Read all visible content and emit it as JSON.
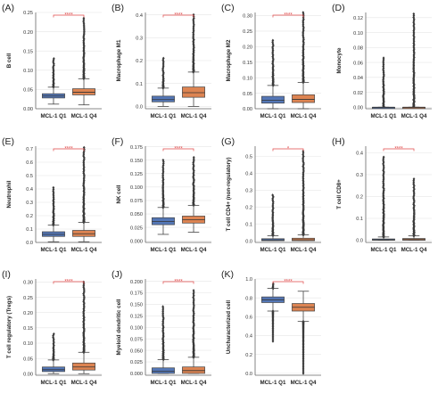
{
  "chart_data": [
    {
      "type": "box",
      "panel_label": "(A)",
      "ylabel": "B cell",
      "categories": [
        "MCL-1 Q1",
        "MCL-1 Q4"
      ],
      "yticks": [
        "0.00",
        "0.05",
        "0.10",
        "0.15",
        "0.20",
        "0.25"
      ],
      "ylim": [
        0,
        0.25
      ],
      "significance": "****",
      "boxes": [
        {
          "q1": 0.028,
          "median": 0.033,
          "q3": 0.039,
          "whisker_low": 0.012,
          "whisker_high": 0.056,
          "outlier_max": 0.13
        },
        {
          "q1": 0.036,
          "median": 0.043,
          "q3": 0.052,
          "whisker_low": 0.01,
          "whisker_high": 0.078,
          "outlier_max": 0.235
        }
      ]
    },
    {
      "type": "box",
      "panel_label": "(B)",
      "ylabel": "Macrophage M1",
      "categories": [
        "MCL-1 Q1",
        "MCL-1 Q4"
      ],
      "yticks": [
        "0.0",
        "0.1",
        "0.2",
        "0.3",
        "0.4"
      ],
      "ylim": [
        -0.01,
        0.41
      ],
      "significance": "****",
      "boxes": [
        {
          "q1": 0.02,
          "median": 0.03,
          "q3": 0.045,
          "whisker_low": 0.0,
          "whisker_high": 0.08,
          "outlier_max": 0.21
        },
        {
          "q1": 0.04,
          "median": 0.06,
          "q3": 0.085,
          "whisker_low": 0.0,
          "whisker_high": 0.15,
          "outlier_max": 0.4
        }
      ]
    },
    {
      "type": "box",
      "panel_label": "(C)",
      "ylabel": "Macrophage M2",
      "categories": [
        "MCL-1 Q1",
        "MCL-1 Q4"
      ],
      "yticks": [
        "0.00",
        "0.05",
        "0.10",
        "0.15",
        "0.20",
        "0.25",
        "0.30"
      ],
      "ylim": [
        0,
        0.31
      ],
      "significance": "****",
      "boxes": [
        {
          "q1": 0.018,
          "median": 0.027,
          "q3": 0.04,
          "whisker_low": 0.0,
          "whisker_high": 0.075,
          "outlier_max": 0.22
        },
        {
          "q1": 0.02,
          "median": 0.03,
          "q3": 0.045,
          "whisker_low": 0.0,
          "whisker_high": 0.085,
          "outlier_max": 0.31
        }
      ]
    },
    {
      "type": "box",
      "panel_label": "(D)",
      "ylabel": "Monocyte",
      "categories": [
        "MCL-1 Q1",
        "MCL-1 Q4"
      ],
      "yticks": [
        "0.00",
        "0.02",
        "0.04",
        "0.06",
        "0.08",
        "0.10",
        "0.12"
      ],
      "ylim": [
        -0.002,
        0.127
      ],
      "significance": "",
      "boxes": [
        {
          "q1": 0.0,
          "median": 0.0,
          "q3": 0.0,
          "whisker_low": 0.0,
          "whisker_high": 0.0,
          "outlier_max": 0.066
        },
        {
          "q1": 0.0,
          "median": 0.0,
          "q3": 0.0,
          "whisker_low": 0.0,
          "whisker_high": 0.0,
          "outlier_max": 0.125
        }
      ]
    },
    {
      "type": "box",
      "panel_label": "(E)",
      "ylabel": "Neutrophil",
      "categories": [
        "MCL-1 Q1",
        "MCL-1 Q4"
      ],
      "yticks": [
        "0.0",
        "0.1",
        "0.2",
        "0.3",
        "0.4",
        "0.5",
        "0.6",
        "0.7"
      ],
      "ylim": [
        0,
        0.72
      ],
      "significance": "****",
      "boxes": [
        {
          "q1": 0.045,
          "median": 0.06,
          "q3": 0.08,
          "whisker_low": 0.005,
          "whisker_high": 0.13,
          "outlier_max": 0.41
        },
        {
          "q1": 0.045,
          "median": 0.065,
          "q3": 0.09,
          "whisker_low": 0.005,
          "whisker_high": 0.15,
          "outlier_max": 0.71
        }
      ]
    },
    {
      "type": "box",
      "panel_label": "(F)",
      "ylabel": "NK cell",
      "categories": [
        "MCL-1 Q1",
        "MCL-1 Q4"
      ],
      "yticks": [
        "0.000",
        "0.025",
        "0.050",
        "0.075",
        "0.100",
        "0.125",
        "0.150",
        "0.175"
      ],
      "ylim": [
        -0.003,
        0.176
      ],
      "significance": "****",
      "boxes": [
        {
          "q1": 0.03,
          "median": 0.036,
          "q3": 0.043,
          "whisker_low": 0.012,
          "whisker_high": 0.062,
          "outlier_max": 0.15
        },
        {
          "q1": 0.033,
          "median": 0.039,
          "q3": 0.046,
          "whisker_low": 0.016,
          "whisker_high": 0.066,
          "outlier_max": 0.155
        }
      ]
    },
    {
      "type": "box",
      "panel_label": "(G)",
      "ylabel": "T cell CD4+ (non-regulatory)",
      "categories": [
        "MCL-1 Q1",
        "MCL-1 Q4"
      ],
      "yticks": [
        "0.0",
        "0.1",
        "0.2",
        "0.3",
        "0.4",
        "0.5"
      ],
      "ylim": [
        -0.01,
        0.56
      ],
      "significance": "*",
      "boxes": [
        {
          "q1": 0.0,
          "median": 0.005,
          "q3": 0.012,
          "whisker_low": 0.0,
          "whisker_high": 0.03,
          "outlier_max": 0.27
        },
        {
          "q1": 0.0,
          "median": 0.006,
          "q3": 0.015,
          "whisker_low": 0.0,
          "whisker_high": 0.035,
          "outlier_max": 0.53
        }
      ]
    },
    {
      "type": "box",
      "panel_label": "(H)",
      "ylabel": "T cell CD8+",
      "categories": [
        "MCL-1 Q1",
        "MCL-1 Q4"
      ],
      "yticks": [
        "0.0",
        "0.1",
        "0.2",
        "0.3",
        "0.4"
      ],
      "ylim": [
        -0.01,
        0.43
      ],
      "significance": "****",
      "boxes": [
        {
          "q1": 0.0,
          "median": 0.002,
          "q3": 0.006,
          "whisker_low": 0.0,
          "whisker_high": 0.015,
          "outlier_max": 0.38
        },
        {
          "q1": 0.0,
          "median": 0.003,
          "q3": 0.008,
          "whisker_low": 0.0,
          "whisker_high": 0.02,
          "outlier_max": 0.28
        }
      ]
    },
    {
      "type": "box",
      "panel_label": "(I)",
      "ylabel": "T cell regulatory (Tregs)",
      "categories": [
        "MCL-1 Q1",
        "MCL-1 Q4"
      ],
      "yticks": [
        "0.00",
        "0.05",
        "0.10",
        "0.15",
        "0.20",
        "0.25",
        "0.30"
      ],
      "ylim": [
        -0.005,
        0.31
      ],
      "significance": "****",
      "boxes": [
        {
          "q1": 0.007,
          "median": 0.013,
          "q3": 0.022,
          "whisker_low": 0.0,
          "whisker_high": 0.045,
          "outlier_max": 0.13
        },
        {
          "q1": 0.012,
          "median": 0.022,
          "q3": 0.035,
          "whisker_low": 0.0,
          "whisker_high": 0.07,
          "outlier_max": 0.3
        }
      ]
    },
    {
      "type": "box",
      "panel_label": "(J)",
      "ylabel": "Myeloid dendritic cell",
      "categories": [
        "MCL-1 Q1",
        "MCL-1 Q4"
      ],
      "yticks": [
        "0.000",
        "0.025",
        "0.050",
        "0.075",
        "0.100",
        "0.125",
        "0.150",
        "0.175",
        "0.200"
      ],
      "ylim": [
        -0.004,
        0.205
      ],
      "significance": "****",
      "boxes": [
        {
          "q1": 0.0,
          "median": 0.005,
          "q3": 0.012,
          "whisker_low": 0.0,
          "whisker_high": 0.03,
          "outlier_max": 0.145
        },
        {
          "q1": 0.0,
          "median": 0.006,
          "q3": 0.014,
          "whisker_low": 0.0,
          "whisker_high": 0.035,
          "outlier_max": 0.18
        }
      ]
    },
    {
      "type": "box",
      "panel_label": "(K)",
      "ylabel": "Uncharacterized cell",
      "categories": [
        "MCL-1 Q1",
        "MCL-1 Q4"
      ],
      "yticks": [
        "0.0",
        "0.2",
        "0.4",
        "0.6",
        "0.8",
        "1.0"
      ],
      "ylim": [
        -0.02,
        1.0
      ],
      "significance": "****",
      "boxes": [
        {
          "q1": 0.75,
          "median": 0.78,
          "q3": 0.81,
          "whisker_low": 0.66,
          "whisker_high": 0.9,
          "outlier_max": 0.95,
          "outlier_min": 0.34
        },
        {
          "q1": 0.66,
          "median": 0.7,
          "q3": 0.74,
          "whisker_low": 0.55,
          "whisker_high": 0.87,
          "outlier_max": 0.87,
          "outlier_min": 0.0
        }
      ]
    }
  ],
  "colors": {
    "q1_box": "#5477b7",
    "q4_box": "#dd8452",
    "significance": "#e04848",
    "axis": "#666666",
    "grid": "#e6e6e6"
  }
}
